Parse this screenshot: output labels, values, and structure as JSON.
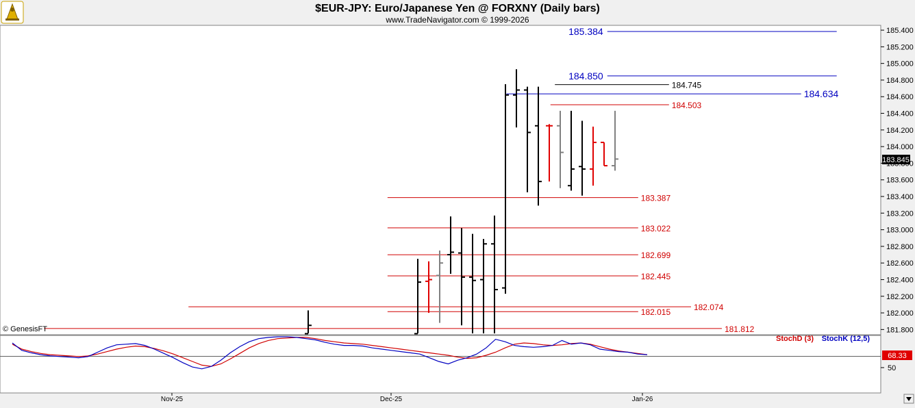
{
  "header": {
    "title": "$EUR-JPY:  Euro/Japanese Yen @ FORXNY  (Daily bars)",
    "subtitle": "www.TradeNavigator.com © 1999-2026",
    "watermark": "© GenesisFT"
  },
  "colors": {
    "bar_black": "#000000",
    "bar_red": "#e00000",
    "bar_gray": "#808080",
    "level_red": "#d00000",
    "level_blue": "#0000c0",
    "level_black": "#000000",
    "stoch_d": "#d00000",
    "stoch_k": "#0000c0",
    "panel_bg": "#ffffff",
    "frame_bg": "#f0f0f0"
  },
  "chart_data": [
    {
      "type": "ohlc",
      "title": "$EUR-JPY:  Euro/Japanese Yen @ FORXNY  (Daily bars)",
      "ylim": [
        181.7,
        185.45
      ],
      "y_ticks": [
        "185.400",
        "185.200",
        "185.000",
        "184.800",
        "184.600",
        "184.400",
        "184.200",
        "184.000",
        "183.800",
        "183.600",
        "183.400",
        "183.200",
        "183.000",
        "182.800",
        "182.600",
        "182.400",
        "182.200",
        "182.000",
        "181.800"
      ],
      "x_ticks": [
        "Nov-25",
        "Dec-25",
        "Jan-26"
      ],
      "last_price": "183.845",
      "bars": [
        {
          "t": 0,
          "o": 181.75,
          "h": 182.03,
          "l": 181.7,
          "c": 181.85,
          "color": "black"
        },
        {
          "t": 10,
          "o": 181.75,
          "h": 182.65,
          "l": 181.7,
          "c": 182.37,
          "color": "black"
        },
        {
          "t": 11,
          "o": 182.38,
          "h": 182.62,
          "l": 182.0,
          "c": 182.4,
          "color": "red"
        },
        {
          "t": 12,
          "o": 182.45,
          "h": 182.75,
          "l": 181.88,
          "c": 182.6,
          "color": "gray"
        },
        {
          "t": 13,
          "o": 182.7,
          "h": 183.16,
          "l": 182.47,
          "c": 182.73,
          "color": "black"
        },
        {
          "t": 14,
          "o": 182.72,
          "h": 183.02,
          "l": 181.85,
          "c": 182.43,
          "color": "black"
        },
        {
          "t": 15,
          "o": 182.43,
          "h": 182.95,
          "l": 181.7,
          "c": 182.39,
          "color": "black"
        },
        {
          "t": 16,
          "o": 182.4,
          "h": 182.89,
          "l": 181.7,
          "c": 182.83,
          "color": "black"
        },
        {
          "t": 17,
          "o": 182.83,
          "h": 183.17,
          "l": 181.7,
          "c": 182.28,
          "color": "black"
        },
        {
          "t": 18,
          "o": 182.3,
          "h": 184.75,
          "l": 182.23,
          "c": 184.62,
          "color": "black"
        },
        {
          "t": 19,
          "o": 184.62,
          "h": 184.93,
          "l": 184.23,
          "c": 184.68,
          "color": "black"
        },
        {
          "t": 20,
          "o": 184.68,
          "h": 184.72,
          "l": 183.45,
          "c": 184.17,
          "color": "black"
        },
        {
          "t": 21,
          "o": 184.25,
          "h": 184.72,
          "l": 183.29,
          "c": 183.58,
          "color": "black"
        },
        {
          "t": 22,
          "o": 184.25,
          "h": 184.27,
          "l": 183.58,
          "c": 184.25,
          "color": "red"
        },
        {
          "t": 23,
          "o": 184.25,
          "h": 184.43,
          "l": 183.5,
          "c": 183.93,
          "color": "gray"
        },
        {
          "t": 24,
          "o": 183.53,
          "h": 184.43,
          "l": 183.47,
          "c": 183.73,
          "color": "black"
        },
        {
          "t": 25,
          "o": 183.76,
          "h": 184.31,
          "l": 183.41,
          "c": 183.73,
          "color": "black"
        },
        {
          "t": 26,
          "o": 183.73,
          "h": 184.24,
          "l": 183.53,
          "c": 184.05,
          "color": "red"
        },
        {
          "t": 27,
          "o": 184.05,
          "h": 184.05,
          "l": 183.77,
          "c": 183.77,
          "color": "red"
        },
        {
          "t": 28,
          "o": 183.77,
          "h": 184.43,
          "l": 183.71,
          "c": 183.85,
          "color": "gray"
        }
      ],
      "levels": [
        {
          "label": "185.384",
          "value": 185.384,
          "color": "blue",
          "label_side": "left",
          "x_start": 0.52,
          "x_end": 0.95
        },
        {
          "label": "184.850",
          "value": 184.85,
          "color": "blue",
          "label_side": "left",
          "x_start": 0.52,
          "x_end": 0.95
        },
        {
          "label": "184.745",
          "value": 184.745,
          "color": "black",
          "label_side": "right",
          "x_start": 0.63,
          "x_end": 0.8
        },
        {
          "label": "184.634",
          "value": 184.634,
          "color": "blue",
          "label_side": "right",
          "x_start": 0.575,
          "x_end": 0.95
        },
        {
          "label": "184.503",
          "value": 184.503,
          "color": "red",
          "label_side": "right",
          "x_start": 0.625,
          "x_end": 0.8
        },
        {
          "label": "183.387",
          "value": 183.387,
          "color": "red",
          "label_side": "right",
          "x_start": 0.44,
          "x_end": 0.765
        },
        {
          "label": "183.022",
          "value": 183.022,
          "color": "red",
          "label_side": "right",
          "x_start": 0.44,
          "x_end": 0.765
        },
        {
          "label": "182.699",
          "value": 182.699,
          "color": "red",
          "label_side": "right",
          "x_start": 0.44,
          "x_end": 0.765
        },
        {
          "label": "182.445",
          "value": 182.445,
          "color": "red",
          "label_side": "right",
          "x_start": 0.44,
          "x_end": 0.765
        },
        {
          "label": "182.074",
          "value": 182.074,
          "color": "red",
          "label_side": "right",
          "x_start": 0.214,
          "x_end": 0.825
        },
        {
          "label": "182.015",
          "value": 182.015,
          "color": "red",
          "label_side": "right",
          "x_start": 0.44,
          "x_end": 0.765
        },
        {
          "label": "181.812",
          "value": 181.812,
          "color": "red",
          "label_side": "right",
          "x_start": 0.05,
          "x_end": 0.86
        }
      ]
    },
    {
      "type": "line",
      "title": "",
      "ylim": [
        20,
        110
      ],
      "y_ticks": [
        "50"
      ],
      "reference_level": 68.33,
      "last_value_label": "68.33",
      "series": [
        {
          "name": "StochD (3)",
          "color": "red",
          "values": [
            88,
            80,
            76,
            73,
            71,
            70,
            69,
            68,
            69,
            72,
            76,
            80,
            83,
            85,
            84,
            81,
            77,
            72,
            66,
            60,
            54,
            52,
            56,
            64,
            73,
            82,
            89,
            94,
            97,
            98,
            99,
            99,
            97,
            94,
            92,
            90,
            89,
            88,
            86,
            84,
            82,
            80,
            78,
            76,
            74,
            72,
            70,
            67,
            65,
            66,
            70,
            75,
            82,
            88,
            90,
            89,
            87,
            86,
            87,
            89,
            90,
            88,
            84,
            80,
            77,
            75,
            73,
            71
          ]
        },
        {
          "name": "StochK (12,5)",
          "color": "blue",
          "values": [
            90,
            78,
            74,
            71,
            69,
            68,
            67,
            66,
            68,
            75,
            82,
            87,
            88,
            89,
            86,
            80,
            73,
            66,
            58,
            51,
            48,
            52,
            62,
            74,
            84,
            92,
            97,
            99,
            100,
            100,
            99,
            97,
            95,
            91,
            88,
            86,
            86,
            85,
            82,
            80,
            78,
            76,
            74,
            72,
            66,
            60,
            56,
            62,
            66,
            72,
            82,
            96,
            92,
            86,
            84,
            83,
            84,
            86,
            94,
            88,
            90,
            87,
            80,
            78,
            76,
            75,
            72,
            71
          ]
        }
      ]
    }
  ]
}
